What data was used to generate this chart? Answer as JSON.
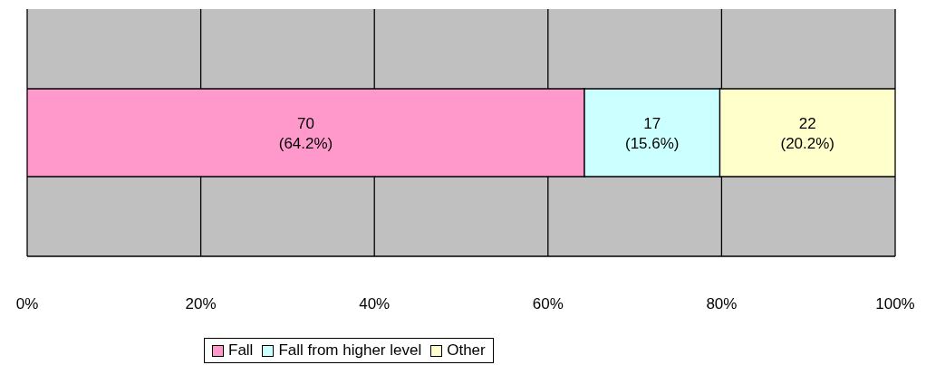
{
  "chart_data": {
    "type": "bar",
    "orientation": "horizontal",
    "stacked": true,
    "categories": [
      null
    ],
    "series": [
      {
        "name": "Fall",
        "color": "#ff99cc",
        "values": [
          64.2
        ],
        "value_labels": [
          "70\n(64.2%)"
        ]
      },
      {
        "name": "Fall from higher level",
        "color": "#ccffff",
        "values": [
          15.6
        ],
        "value_labels": [
          "17\n(15.6%)"
        ]
      },
      {
        "name": "Other",
        "color": "#ffffcc",
        "values": [
          20.2
        ],
        "value_labels": [
          "22\n(20.2%)"
        ]
      }
    ],
    "xlim": [
      0,
      100
    ],
    "xticks": [
      {
        "value": 0,
        "label": "0%"
      },
      {
        "value": 20,
        "label": "20%"
      },
      {
        "value": 40,
        "label": "40%"
      },
      {
        "value": 60,
        "label": "60%"
      },
      {
        "value": 80,
        "label": "80%"
      },
      {
        "value": 100,
        "label": "100%"
      }
    ],
    "grid": "x",
    "legend": "bottom"
  }
}
